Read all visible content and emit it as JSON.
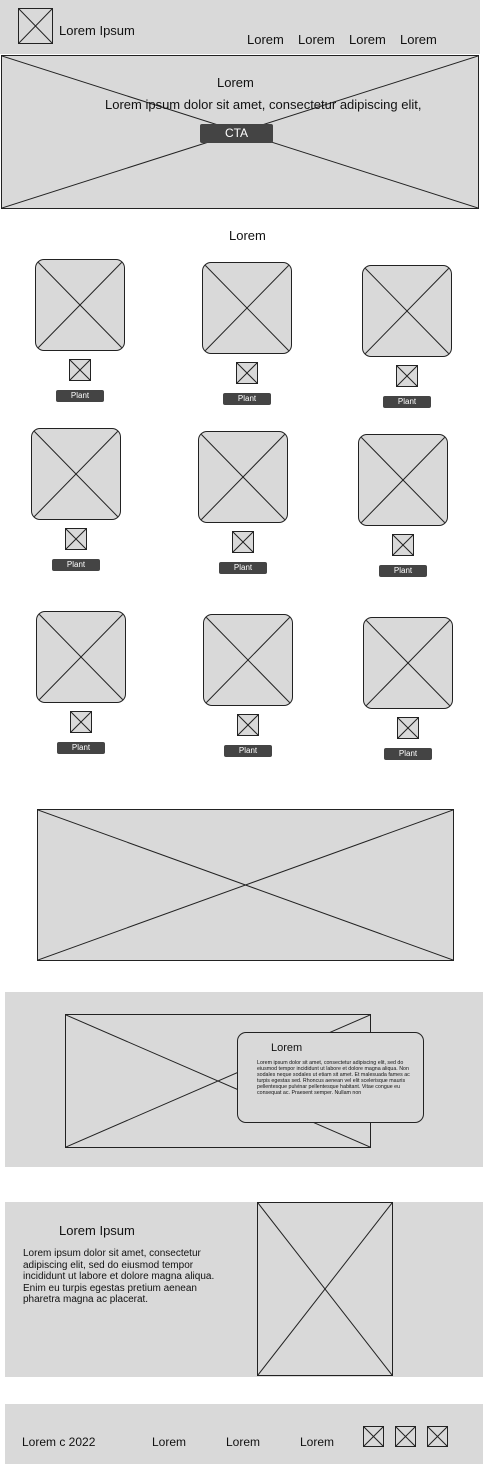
{
  "header": {
    "brand": "Lorem Ipsum",
    "nav": [
      "Lorem",
      "Lorem",
      "Lorem",
      "Lorem"
    ]
  },
  "hero": {
    "title": "Lorem",
    "subtitle": "Lorem ipsum dolor sit amet, consectetur adipiscing elit,",
    "cta": "CTA"
  },
  "products": {
    "heading": "Lorem",
    "items": [
      {
        "label": "Plant"
      },
      {
        "label": "Plant"
      },
      {
        "label": "Plant"
      },
      {
        "label": "Plant"
      },
      {
        "label": "Plant"
      },
      {
        "label": "Plant"
      },
      {
        "label": "Plant"
      },
      {
        "label": "Plant"
      },
      {
        "label": "Plant"
      }
    ]
  },
  "feature": {
    "card_title": "Lorem",
    "card_text": "Lorem ipsum dolor sit amet, consectetur adipiscing elit, sed do eiusmod tempor incididunt ut labore et dolore magna aliqua. Non sodales neque sodales ut etiam sit amet. Et malesuada fames ac turpis egestas sed. Rhoncus aenean vel elit scelerisque mauris pellentesque pulvinar pellentesque habitant. Vitae congue eu consequat ac. Praesent semper. Nullam non"
  },
  "about": {
    "title": "Lorem Ipsum",
    "text": "Lorem ipsum dolor sit amet, consectetur adipiscing elit, sed do eiusmod tempor incididunt ut labore et dolore magna aliqua. Enim eu turpis egestas pretium aenean pharetra magna ac placerat."
  },
  "footer": {
    "copyright": "Lorem c 2022",
    "links": [
      "Lorem",
      "Lorem",
      "Lorem"
    ],
    "social_icons": [
      "social-icon",
      "social-icon",
      "social-icon"
    ]
  },
  "colors": {
    "placeholder": "#d9d9d9",
    "button": "#444444",
    "stroke": "#222222"
  }
}
